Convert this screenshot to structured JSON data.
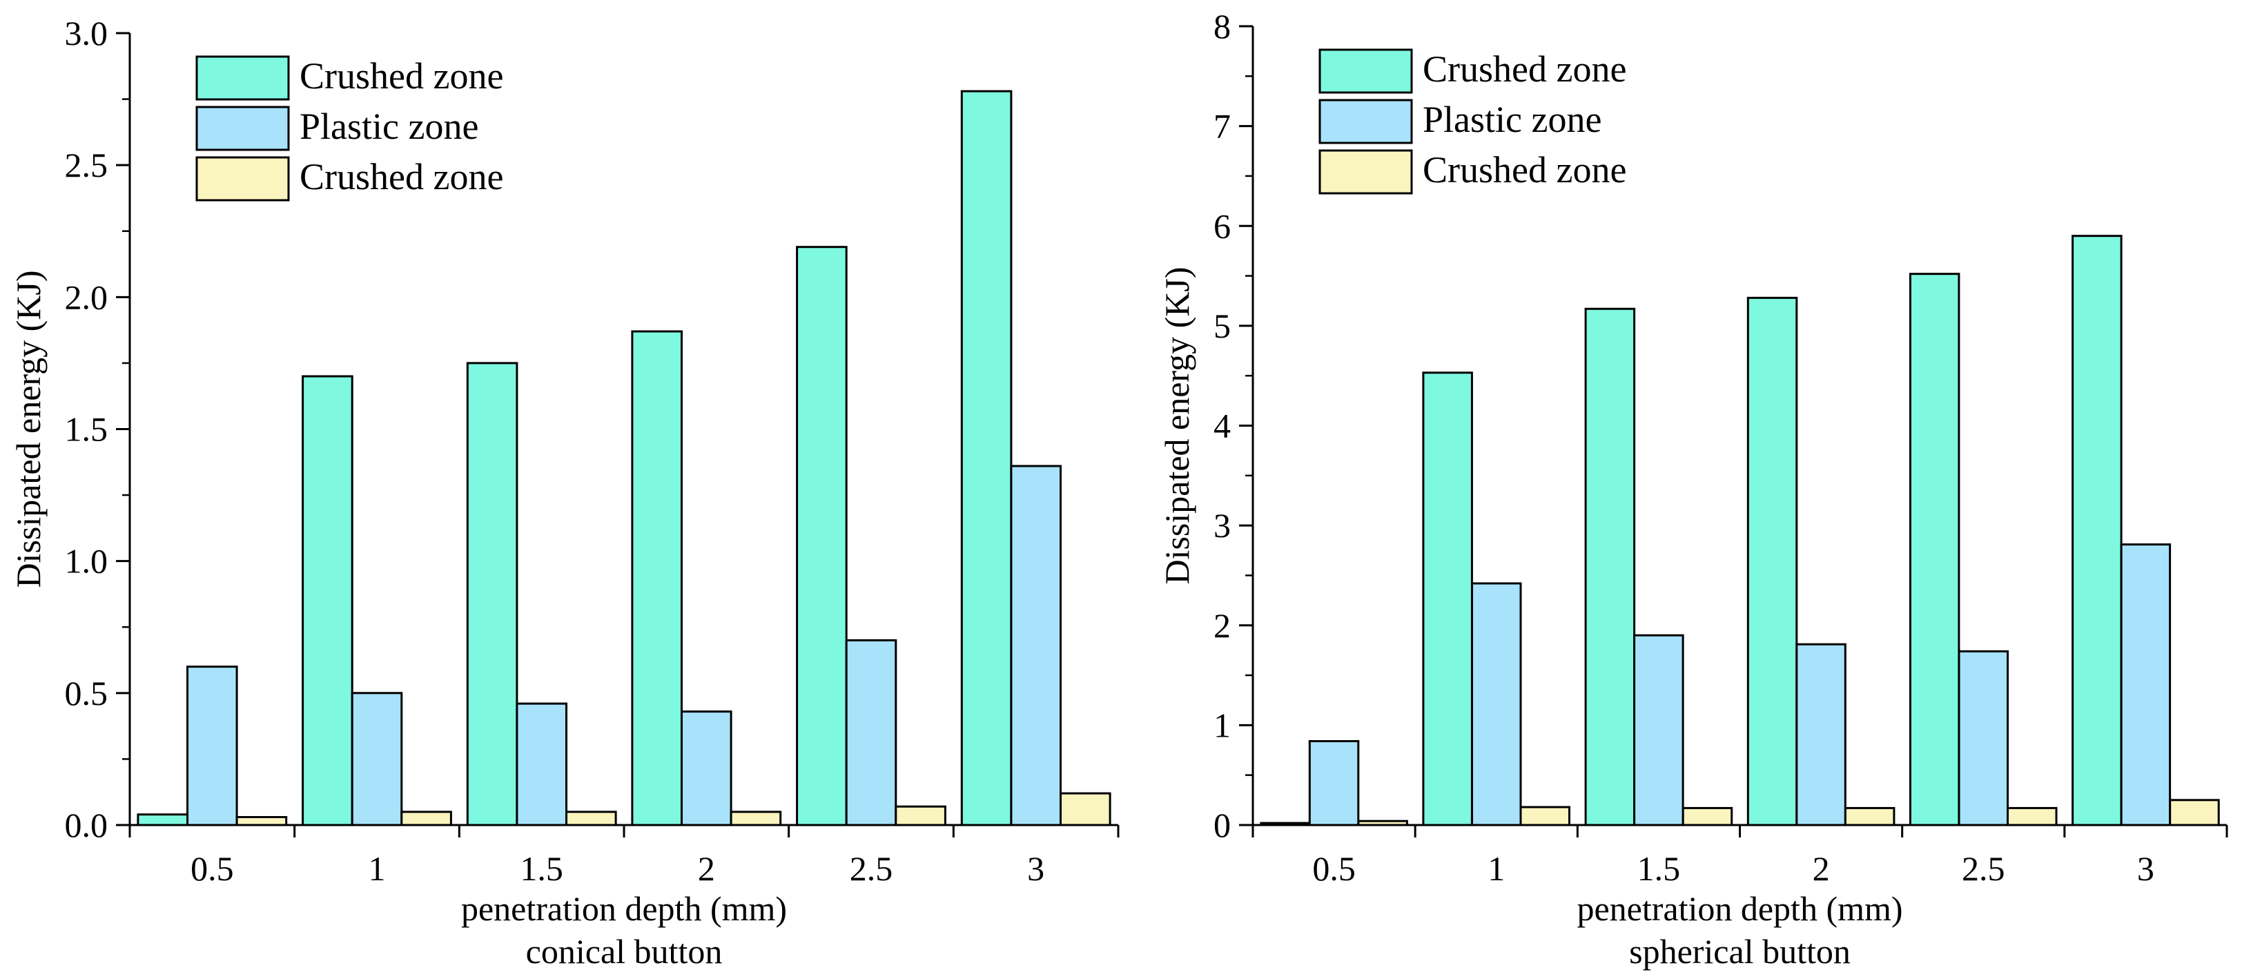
{
  "chart_data": [
    {
      "type": "bar",
      "title": "",
      "subtitle": "conical button",
      "xlabel": "penetration depth (mm)",
      "ylabel": "Dissipated energy (KJ)",
      "categories": [
        "0.5",
        "1",
        "1.5",
        "2",
        "2.5",
        "3"
      ],
      "ylim": [
        0,
        3.0
      ],
      "yticks": [
        0.0,
        0.5,
        1.0,
        1.5,
        2.0,
        2.5,
        3.0
      ],
      "ytick_labels": [
        "0.0",
        "0.5",
        "1.0",
        "1.5",
        "2.0",
        "2.5",
        "3.0"
      ],
      "grid": false,
      "legend_position": "top-left",
      "series": [
        {
          "name": "Crushed zone",
          "color": "#7ff8e0",
          "values": [
            0.04,
            1.7,
            1.75,
            1.87,
            2.19,
            2.78
          ]
        },
        {
          "name": "Plastic zone",
          "color": "#a8e2fb",
          "values": [
            0.6,
            0.5,
            0.46,
            0.43,
            0.7,
            1.36
          ]
        },
        {
          "name": "Crushed zone",
          "color": "#faf5bf",
          "values": [
            0.03,
            0.05,
            0.05,
            0.05,
            0.07,
            0.12
          ]
        }
      ]
    },
    {
      "type": "bar",
      "title": "",
      "subtitle": "spherical button",
      "xlabel": "penetration depth (mm)",
      "ylabel": "Dissipated energy (KJ)",
      "categories": [
        "0.5",
        "1",
        "1.5",
        "2",
        "2.5",
        "3"
      ],
      "ylim": [
        0,
        8
      ],
      "yticks": [
        0,
        1,
        2,
        3,
        4,
        5,
        6,
        7,
        8
      ],
      "ytick_labels": [
        "0",
        "1",
        "2",
        "3",
        "4",
        "5",
        "6",
        "7",
        "8"
      ],
      "grid": false,
      "legend_position": "top-left",
      "series": [
        {
          "name": "Crushed zone",
          "color": "#7ff8e0",
          "values": [
            0.02,
            4.53,
            5.17,
            5.28,
            5.52,
            5.9
          ]
        },
        {
          "name": "Plastic zone",
          "color": "#a8e2fb",
          "values": [
            0.84,
            2.42,
            1.9,
            1.81,
            1.74,
            2.81
          ]
        },
        {
          "name": "Crushed zone",
          "color": "#faf5bf",
          "values": [
            0.04,
            0.18,
            0.17,
            0.17,
            0.17,
            0.25
          ]
        }
      ]
    }
  ]
}
